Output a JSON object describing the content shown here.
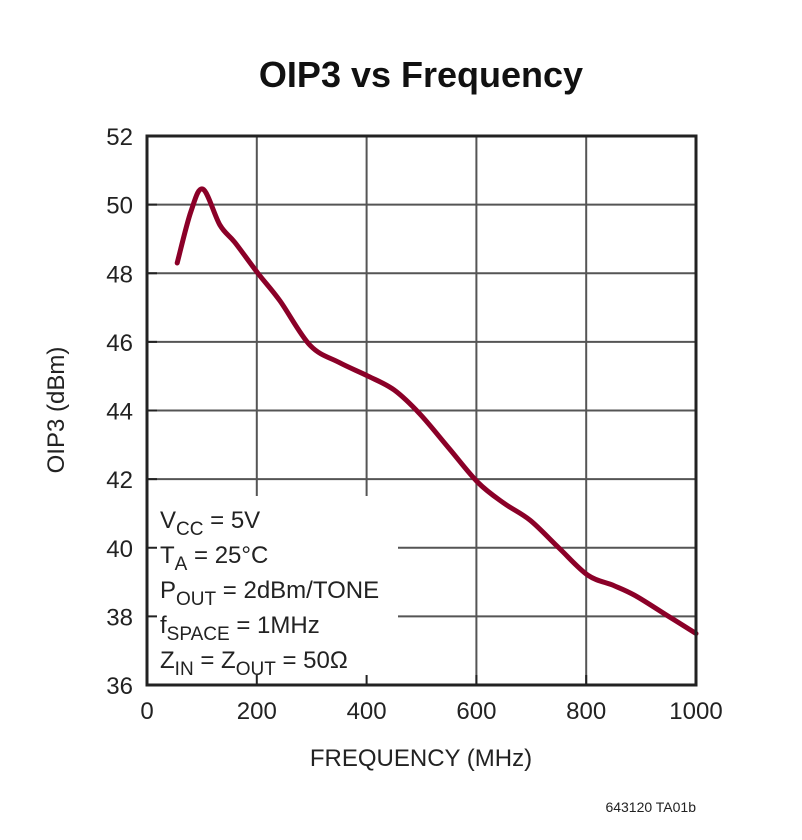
{
  "chart_data": {
    "type": "line",
    "title": "OIP3 vs Frequency",
    "xlabel": "FREQUENCY (MHz)",
    "ylabel": "OIP3 (dBm)",
    "xlim": [
      0,
      1000
    ],
    "ylim": [
      36,
      52
    ],
    "xticks": [
      "0",
      "200",
      "400",
      "600",
      "800",
      "1000"
    ],
    "yticks": [
      "36",
      "38",
      "40",
      "42",
      "44",
      "46",
      "48",
      "50",
      "52"
    ],
    "grid": true,
    "line_color": "#8B0028",
    "series": [
      {
        "x": [
          55,
          80,
          102,
          133,
          160,
          202,
          242,
          297,
          350,
          403,
          450,
          497,
          550,
          603,
          650,
          698,
          750,
          803,
          850,
          890,
          950,
          1000
        ],
        "y": [
          48.3,
          49.8,
          50.45,
          49.4,
          48.9,
          48.0,
          47.2,
          45.9,
          45.4,
          45.0,
          44.6,
          43.9,
          42.9,
          41.9,
          41.3,
          40.8,
          40.0,
          39.2,
          38.9,
          38.6,
          38.0,
          37.5
        ]
      }
    ],
    "annotations": [
      {
        "main": "V",
        "sub": "CC",
        "rest": " = 5V"
      },
      {
        "main": "T",
        "sub": "A",
        "rest": " = 25°C"
      },
      {
        "main": "P",
        "sub": "OUT",
        "rest": " = 2dBm/TONE"
      },
      {
        "main": "f",
        "sub": "SPACE",
        "rest": " = 1MHz"
      },
      {
        "main": "Z",
        "sub": "IN",
        "rest": " = Z",
        "sub2": "OUT",
        "rest2": " = 50Ω"
      }
    ]
  },
  "footer": "643120 TA01b"
}
